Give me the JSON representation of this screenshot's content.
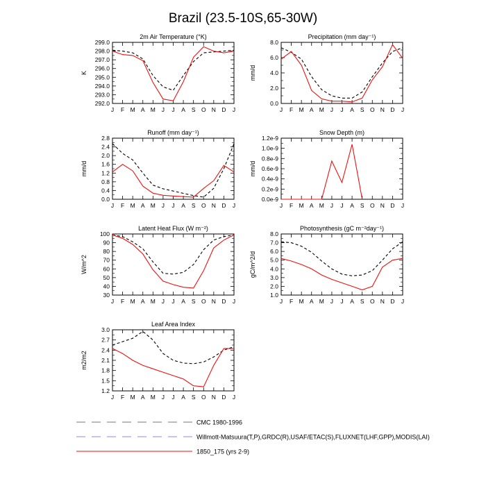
{
  "page_title": "Brazil (23.5-10S,65-30W)",
  "months": [
    "J",
    "F",
    "M",
    "A",
    "M",
    "J",
    "J",
    "A",
    "S",
    "O",
    "N",
    "D",
    "J"
  ],
  "legend": [
    {
      "label": "CMC 1980-1996",
      "color": "#777777",
      "style": "long-dash"
    },
    {
      "label": "Willmott-Matsuura(T,P),GRDC(R),USAF/ETAC(S),FLUXNET(LHF,GPP),MODIS(LAI)",
      "color": "#8888dd",
      "style": "long-dash"
    },
    {
      "label": "1850_175 (yrs 2-9)",
      "color": "#ee1111",
      "style": "solid"
    }
  ],
  "chart_data": [
    {
      "id": "temp",
      "type": "line",
      "title": "2m Air Temperature (°K)",
      "ylabel": "K",
      "ylim": [
        292.0,
        299.0
      ],
      "yticks": [
        "292.0",
        "293.0",
        "294.0",
        "295.0",
        "296.0",
        "297.0",
        "298.0",
        "299.0"
      ],
      "series": [
        {
          "values": [
            298.1,
            298.0,
            297.8,
            297.1,
            295.2,
            293.9,
            293.5,
            295.2,
            296.8,
            297.8,
            297.9,
            298.0,
            298.1
          ],
          "color": "#000000",
          "dash": true
        },
        {
          "values": [
            298.0,
            297.6,
            297.5,
            296.9,
            294.4,
            292.5,
            292.3,
            294.5,
            297.3,
            298.5,
            298.0,
            297.8,
            298.0
          ],
          "color": "#ee1111",
          "dash": false
        }
      ]
    },
    {
      "id": "precip",
      "type": "line",
      "title": "Precipitation (mm day⁻¹)",
      "ylabel": "mm/d",
      "ylim": [
        0.0,
        8.0
      ],
      "yticks": [
        "0.0",
        "2.0",
        "4.0",
        "6.0",
        "8.0"
      ],
      "series": [
        {
          "values": [
            7.3,
            6.7,
            5.8,
            3.5,
            1.8,
            1.0,
            0.7,
            0.7,
            1.5,
            3.5,
            5.3,
            6.8,
            7.3
          ],
          "color": "#000000",
          "dash": true
        },
        {
          "values": [
            5.8,
            6.8,
            5.0,
            1.7,
            0.6,
            0.3,
            0.3,
            0.2,
            0.7,
            3.1,
            4.8,
            7.7,
            5.9
          ],
          "color": "#ee1111",
          "dash": false
        }
      ]
    },
    {
      "id": "runoff",
      "type": "line",
      "title": "Runoff (mm day⁻¹)",
      "ylabel": "mm/d",
      "ylim": [
        0.0,
        2.8
      ],
      "yticks": [
        "0.0",
        "0.4",
        "0.8",
        "1.2",
        "1.6",
        "2.0",
        "2.4",
        "2.8"
      ],
      "series": [
        {
          "values": [
            2.55,
            2.1,
            1.8,
            1.2,
            0.65,
            0.48,
            0.38,
            0.27,
            0.17,
            0.1,
            0.5,
            1.4,
            2.55
          ],
          "color": "#000000",
          "dash": true
        },
        {
          "values": [
            1.25,
            1.6,
            1.3,
            0.6,
            0.28,
            0.18,
            0.15,
            0.12,
            0.1,
            0.5,
            0.85,
            1.55,
            1.25
          ],
          "color": "#ee1111",
          "dash": false
        }
      ]
    },
    {
      "id": "snow",
      "type": "line",
      "title": "Snow Depth (m)",
      "ylabel": "mm/d",
      "ylim": [
        0.0,
        1.2e-09
      ],
      "yticks": [
        "0.0e-9",
        "0.2e-9",
        "0.4e-9",
        "0.6e-9",
        "0.8e-9",
        "1.0e-9",
        "1.2e-9"
      ],
      "series": [
        {
          "values": [
            0,
            0,
            0,
            0,
            0,
            7.5e-10,
            3.3e-10,
            1.08e-09,
            0,
            null,
            null,
            null,
            null
          ],
          "color": "#ee1111",
          "dash": false
        }
      ]
    },
    {
      "id": "lhf",
      "type": "line",
      "title": "Latent Heat Flux (W m⁻²)",
      "ylabel": "W/m^2",
      "ylim": [
        30,
        100
      ],
      "yticks": [
        "30",
        "40",
        "50",
        "60",
        "70",
        "80",
        "90",
        "100"
      ],
      "series": [
        {
          "values": [
            99,
            97,
            91,
            83,
            68,
            55,
            54,
            56,
            65,
            82,
            93,
            97,
            99
          ],
          "color": "#000000",
          "dash": true
        },
        {
          "values": [
            99,
            95,
            88,
            77,
            59,
            46,
            42,
            39,
            38,
            58,
            84,
            93,
            99
          ],
          "color": "#ee1111",
          "dash": false
        }
      ]
    },
    {
      "id": "gpp",
      "type": "line",
      "title": "Photosynthesis (gC m⁻²day⁻¹)",
      "ylabel": "gC/m^2/d",
      "ylim": [
        1.0,
        8.0
      ],
      "yticks": [
        "1.0",
        "2.0",
        "3.0",
        "4.0",
        "5.0",
        "6.0",
        "7.0",
        "8.0"
      ],
      "series": [
        {
          "values": [
            7.1,
            7.0,
            6.6,
            5.9,
            4.9,
            4.0,
            3.4,
            3.2,
            3.3,
            3.8,
            5.0,
            6.3,
            7.1
          ],
          "color": "#000000",
          "dash": true
        },
        {
          "values": [
            5.2,
            4.9,
            4.5,
            4.0,
            3.3,
            2.8,
            2.4,
            2.0,
            1.6,
            2.0,
            4.2,
            5.0,
            5.2
          ],
          "color": "#ee1111",
          "dash": false
        }
      ]
    },
    {
      "id": "lai",
      "type": "line",
      "title": "Leaf Area Index",
      "ylabel": "m2/m2",
      "ylim": [
        1.2,
        3.0
      ],
      "yticks": [
        "1.2",
        "1.5",
        "1.8",
        "2.1",
        "2.4",
        "2.7",
        "3.0"
      ],
      "series": [
        {
          "values": [
            2.55,
            2.65,
            2.75,
            2.95,
            2.7,
            2.3,
            2.1,
            2.02,
            2.0,
            2.05,
            2.2,
            2.4,
            2.5
          ],
          "color": "#000000",
          "dash": true
        },
        {
          "values": [
            2.45,
            2.3,
            2.1,
            1.95,
            1.85,
            1.75,
            1.65,
            1.55,
            1.35,
            1.32,
            1.95,
            2.45,
            2.45
          ],
          "color": "#ee1111",
          "dash": false
        }
      ]
    }
  ]
}
